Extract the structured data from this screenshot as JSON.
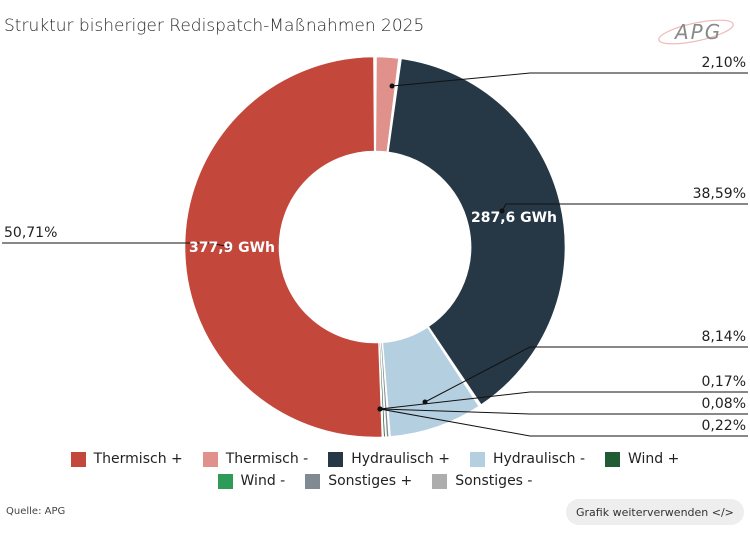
{
  "header": {
    "title": "Struktur bisheriger Redispatch-Maßnahmen 2025",
    "logo_text": "APG"
  },
  "chart_data": {
    "type": "pie",
    "donut": true,
    "title": "Struktur bisheriger Redispatch-Maßnahmen 2025",
    "unit": "GWh",
    "categories": [
      "Thermisch +",
      "Thermisch -",
      "Hydraulisch +",
      "Hydraulisch -",
      "Wind +",
      "Wind -",
      "Sonstiges +",
      "Sonstiges -"
    ],
    "values": [
      50.71,
      2.1,
      38.59,
      8.14,
      0.17,
      0.08,
      0.22,
      0.0
    ],
    "percent_labels": [
      "50,71%",
      "2,10%",
      "38,59%",
      "8,14%",
      "0,17%",
      "0,08%",
      "0,22%",
      ""
    ],
    "inside_labels": [
      "377,9 GWh",
      "",
      "287,6 GWh",
      "",
      "",
      "",
      "",
      ""
    ],
    "colors": [
      "#c4473c",
      "#e0918b",
      "#263846",
      "#b4cfe0",
      "#1f5b33",
      "#2e9b57",
      "#808a93",
      "#adadad"
    ],
    "legend_position": "bottom"
  },
  "footer": {
    "source": "Quelle: APG",
    "reuse_button": "Grafik weiterverwenden </>"
  }
}
